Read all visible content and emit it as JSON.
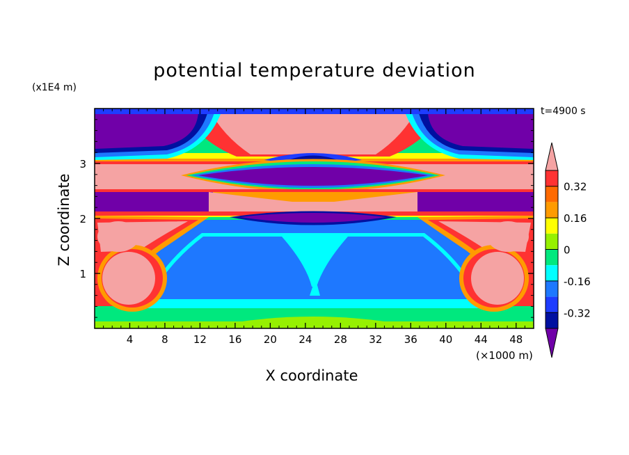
{
  "chart_data": {
    "type": "heatmap",
    "title": "potential temperature deviation",
    "xlabel": "X coordinate",
    "ylabel": "Z coordinate",
    "x_unit": "(×1000 m)",
    "y_unit": "(x1E4 m)",
    "annotation": "t=4900 s",
    "xlim": [
      0,
      50
    ],
    "ylim": [
      0,
      4
    ],
    "x_ticks": [
      4,
      8,
      12,
      16,
      20,
      24,
      28,
      32,
      36,
      40,
      44,
      48
    ],
    "y_ticks": [
      1,
      2,
      3
    ],
    "colorbar": {
      "levels": [
        -0.4,
        -0.32,
        -0.24,
        -0.16,
        -0.08,
        0,
        0.08,
        0.16,
        0.24,
        0.32,
        0.4
      ],
      "labels": [
        "0.32",
        "0.16",
        "0",
        "-0.16",
        "-0.32"
      ],
      "label_values": [
        0.32,
        0.16,
        0,
        -0.16,
        -0.32
      ],
      "colors_top_to_bottom": [
        "#f5a3a3",
        "#ff3232",
        "#ff6a00",
        "#ff9b00",
        "#ffff00",
        "#96f000",
        "#00e87e",
        "#00ffff",
        "#1e78ff",
        "#1e3cff",
        "#0010a0",
        "#7000a8"
      ],
      "extend": "both"
    }
  }
}
